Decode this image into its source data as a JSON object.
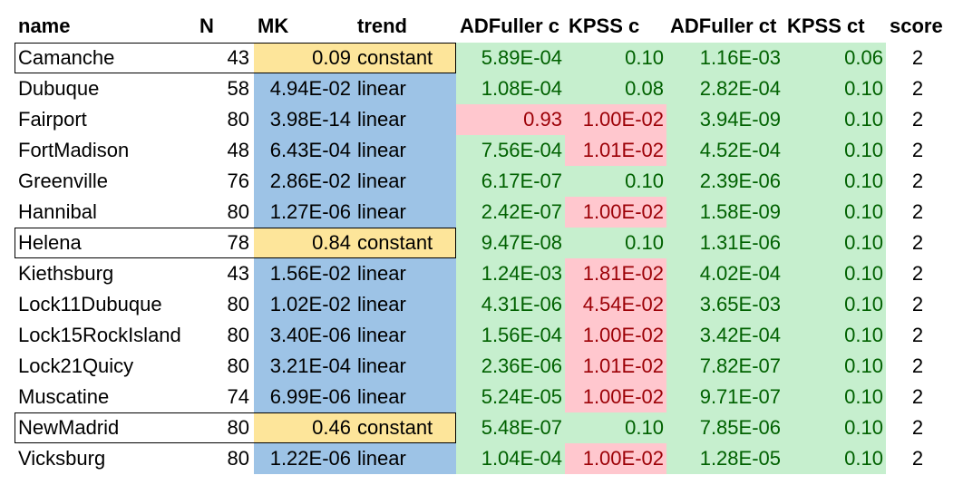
{
  "colors": {
    "yellow": "#fde59a",
    "blue": "#9dc3e6",
    "green": "#c6efce",
    "green_text": "#006100",
    "pink": "#ffc7ce",
    "pink_text": "#9c0006"
  },
  "headers": [
    "name",
    "N",
    "MK",
    "trend",
    "ADFuller c",
    "KPSS c",
    "ADFuller ct",
    "KPSS ct",
    "score"
  ],
  "rows": [
    {
      "name": "Camanche",
      "N": "43",
      "MK": "0.09",
      "trend": "constant",
      "adf_c": "5.89E-04",
      "kpss_c": "0.10",
      "adf_ct": "1.16E-03",
      "kpss_ct": "0.06",
      "score": "2",
      "mk_style": "yellow",
      "adf_c_style": "green",
      "kpss_c_style": "green",
      "boxed": true
    },
    {
      "name": "Dubuque",
      "N": "58",
      "MK": "4.94E-02",
      "trend": "linear",
      "adf_c": "1.08E-04",
      "kpss_c": "0.08",
      "adf_ct": "2.82E-04",
      "kpss_ct": "0.10",
      "score": "2",
      "mk_style": "blue",
      "adf_c_style": "green",
      "kpss_c_style": "green",
      "boxed": false
    },
    {
      "name": "Fairport",
      "N": "80",
      "MK": "3.98E-14",
      "trend": "linear",
      "adf_c": "0.93",
      "kpss_c": "1.00E-02",
      "adf_ct": "3.94E-09",
      "kpss_ct": "0.10",
      "score": "2",
      "mk_style": "blue",
      "adf_c_style": "pink",
      "kpss_c_style": "pink",
      "boxed": false
    },
    {
      "name": "FortMadison",
      "N": "48",
      "MK": "6.43E-04",
      "trend": "linear",
      "adf_c": "7.56E-04",
      "kpss_c": "1.01E-02",
      "adf_ct": "4.52E-04",
      "kpss_ct": "0.10",
      "score": "2",
      "mk_style": "blue",
      "adf_c_style": "green",
      "kpss_c_style": "pink",
      "boxed": false
    },
    {
      "name": "Greenville",
      "N": "76",
      "MK": "2.86E-02",
      "trend": "linear",
      "adf_c": "6.17E-07",
      "kpss_c": "0.10",
      "adf_ct": "2.39E-06",
      "kpss_ct": "0.10",
      "score": "2",
      "mk_style": "blue",
      "adf_c_style": "green",
      "kpss_c_style": "green",
      "boxed": false
    },
    {
      "name": "Hannibal",
      "N": "80",
      "MK": "1.27E-06",
      "trend": "linear",
      "adf_c": "2.42E-07",
      "kpss_c": "1.00E-02",
      "adf_ct": "1.58E-09",
      "kpss_ct": "0.10",
      "score": "2",
      "mk_style": "blue",
      "adf_c_style": "green",
      "kpss_c_style": "pink",
      "boxed": false
    },
    {
      "name": "Helena",
      "N": "78",
      "MK": "0.84",
      "trend": "constant",
      "adf_c": "9.47E-08",
      "kpss_c": "0.10",
      "adf_ct": "1.31E-06",
      "kpss_ct": "0.10",
      "score": "2",
      "mk_style": "yellow",
      "adf_c_style": "green",
      "kpss_c_style": "green",
      "boxed": true
    },
    {
      "name": "Kiethsburg",
      "N": "43",
      "MK": "1.56E-02",
      "trend": "linear",
      "adf_c": "1.24E-03",
      "kpss_c": "1.81E-02",
      "adf_ct": "4.02E-04",
      "kpss_ct": "0.10",
      "score": "2",
      "mk_style": "blue",
      "adf_c_style": "green",
      "kpss_c_style": "pink",
      "boxed": false
    },
    {
      "name": "Lock11Dubuque",
      "N": "80",
      "MK": "1.02E-02",
      "trend": "linear",
      "adf_c": "4.31E-06",
      "kpss_c": "4.54E-02",
      "adf_ct": "3.65E-03",
      "kpss_ct": "0.10",
      "score": "2",
      "mk_style": "blue",
      "adf_c_style": "green",
      "kpss_c_style": "pink",
      "boxed": false
    },
    {
      "name": "Lock15RockIsland",
      "N": "80",
      "MK": "3.40E-06",
      "trend": "linear",
      "adf_c": "1.56E-04",
      "kpss_c": "1.00E-02",
      "adf_ct": "3.42E-04",
      "kpss_ct": "0.10",
      "score": "2",
      "mk_style": "blue",
      "adf_c_style": "green",
      "kpss_c_style": "pink",
      "boxed": false
    },
    {
      "name": "Lock21Quicy",
      "N": "80",
      "MK": "3.21E-04",
      "trend": "linear",
      "adf_c": "2.36E-06",
      "kpss_c": "1.01E-02",
      "adf_ct": "7.82E-07",
      "kpss_ct": "0.10",
      "score": "2",
      "mk_style": "blue",
      "adf_c_style": "green",
      "kpss_c_style": "pink",
      "boxed": false
    },
    {
      "name": "Muscatine",
      "N": "74",
      "MK": "6.99E-06",
      "trend": "linear",
      "adf_c": "5.24E-05",
      "kpss_c": "1.00E-02",
      "adf_ct": "9.71E-07",
      "kpss_ct": "0.10",
      "score": "2",
      "mk_style": "blue",
      "adf_c_style": "green",
      "kpss_c_style": "pink",
      "boxed": false
    },
    {
      "name": "NewMadrid",
      "N": "80",
      "MK": "0.46",
      "trend": "constant",
      "adf_c": "5.48E-07",
      "kpss_c": "0.10",
      "adf_ct": "7.85E-06",
      "kpss_ct": "0.10",
      "score": "2",
      "mk_style": "yellow",
      "adf_c_style": "green",
      "kpss_c_style": "green",
      "boxed": true
    },
    {
      "name": "Vicksburg",
      "N": "80",
      "MK": "1.22E-06",
      "trend": "linear",
      "adf_c": "1.04E-04",
      "kpss_c": "1.00E-02",
      "adf_ct": "1.28E-05",
      "kpss_ct": "0.10",
      "score": "2",
      "mk_style": "blue",
      "adf_c_style": "green",
      "kpss_c_style": "pink",
      "boxed": false
    }
  ]
}
